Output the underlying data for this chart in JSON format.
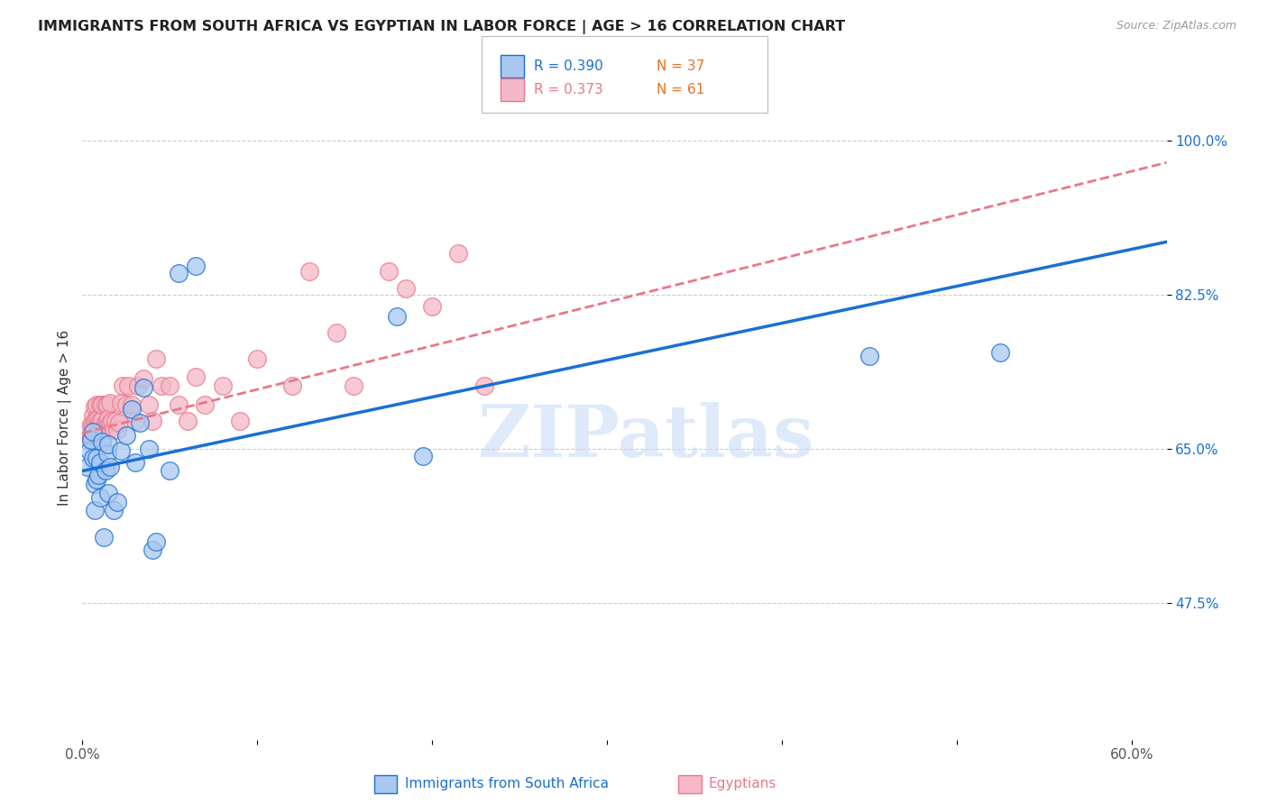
{
  "title": "IMMIGRANTS FROM SOUTH AFRICA VS EGYPTIAN IN LABOR FORCE | AGE > 16 CORRELATION CHART",
  "source": "Source: ZipAtlas.com",
  "xlabel_ticks": [
    "0.0%",
    "",
    "",
    "",
    "",
    "",
    "60.0%"
  ],
  "xlabel_vals": [
    0.0,
    0.1,
    0.2,
    0.3,
    0.4,
    0.5,
    0.6
  ],
  "ylabel_ticks": [
    "100.0%",
    "82.5%",
    "65.0%",
    "47.5%"
  ],
  "ylabel_vals": [
    1.0,
    0.825,
    0.65,
    0.475
  ],
  "ylabel_label": "In Labor Force | Age > 16",
  "xlabel_label_left": "Immigrants from South Africa",
  "xlabel_label_right": "Egyptians",
  "xlim": [
    0.0,
    0.62
  ],
  "ylim": [
    0.32,
    1.05
  ],
  "legend_r1": "R = 0.390",
  "legend_n1": "N = 37",
  "legend_r2": "R = 0.373",
  "legend_n2": "N = 61",
  "color_sa": "#A8C8F0",
  "color_eg": "#F5B8C8",
  "trendline_sa_color": "#1A6FD4",
  "trendline_eg_color": "#E8788A",
  "legend_n_color": "#E87020",
  "watermark_color": "#C8DCF5",
  "grid_color": "#CCCCCC",
  "title_color": "#222222",
  "source_color": "#999999",
  "ylabel_color": "#1A6FD4",
  "xlabel_color": "#555555",
  "ylabel_label_color": "#333333",
  "watermark": "ZIPatlas",
  "sa_points_x": [
    0.003,
    0.004,
    0.005,
    0.006,
    0.006,
    0.007,
    0.007,
    0.008,
    0.008,
    0.009,
    0.01,
    0.01,
    0.011,
    0.012,
    0.013,
    0.014,
    0.015,
    0.015,
    0.016,
    0.018,
    0.02,
    0.022,
    0.025,
    0.028,
    0.03,
    0.033,
    0.035,
    0.038,
    0.04,
    0.042,
    0.05,
    0.055,
    0.065,
    0.18,
    0.195,
    0.45,
    0.525
  ],
  "sa_points_y": [
    0.63,
    0.648,
    0.66,
    0.64,
    0.67,
    0.58,
    0.61,
    0.615,
    0.64,
    0.62,
    0.595,
    0.635,
    0.658,
    0.55,
    0.625,
    0.645,
    0.6,
    0.655,
    0.63,
    0.58,
    0.59,
    0.648,
    0.665,
    0.695,
    0.635,
    0.68,
    0.72,
    0.65,
    0.535,
    0.545,
    0.625,
    0.85,
    0.858,
    0.8,
    0.642,
    0.755,
    0.76
  ],
  "eg_points_x": [
    0.002,
    0.003,
    0.004,
    0.005,
    0.005,
    0.006,
    0.006,
    0.007,
    0.007,
    0.008,
    0.008,
    0.009,
    0.009,
    0.01,
    0.01,
    0.01,
    0.011,
    0.011,
    0.012,
    0.013,
    0.013,
    0.014,
    0.014,
    0.015,
    0.015,
    0.016,
    0.016,
    0.017,
    0.018,
    0.019,
    0.02,
    0.021,
    0.022,
    0.023,
    0.025,
    0.026,
    0.028,
    0.03,
    0.032,
    0.035,
    0.038,
    0.04,
    0.042,
    0.045,
    0.05,
    0.055,
    0.06,
    0.065,
    0.07,
    0.08,
    0.09,
    0.1,
    0.12,
    0.13,
    0.145,
    0.155,
    0.175,
    0.185,
    0.2,
    0.215,
    0.23
  ],
  "eg_points_y": [
    0.672,
    0.66,
    0.672,
    0.665,
    0.678,
    0.675,
    0.688,
    0.682,
    0.698,
    0.685,
    0.7,
    0.672,
    0.685,
    0.67,
    0.682,
    0.7,
    0.683,
    0.7,
    0.672,
    0.68,
    0.7,
    0.682,
    0.7,
    0.672,
    0.685,
    0.68,
    0.702,
    0.682,
    0.672,
    0.682,
    0.672,
    0.68,
    0.702,
    0.722,
    0.7,
    0.722,
    0.7,
    0.682,
    0.722,
    0.73,
    0.7,
    0.682,
    0.752,
    0.722,
    0.722,
    0.7,
    0.682,
    0.732,
    0.7,
    0.722,
    0.682,
    0.752,
    0.722,
    0.852,
    0.782,
    0.722,
    0.852,
    0.832,
    0.812,
    0.872,
    0.722
  ],
  "sa_trend_x": [
    0.0,
    0.62
  ],
  "sa_trend_y": [
    0.625,
    0.885
  ],
  "eg_trend_x": [
    0.0,
    0.62
  ],
  "eg_trend_y": [
    0.668,
    0.975
  ]
}
